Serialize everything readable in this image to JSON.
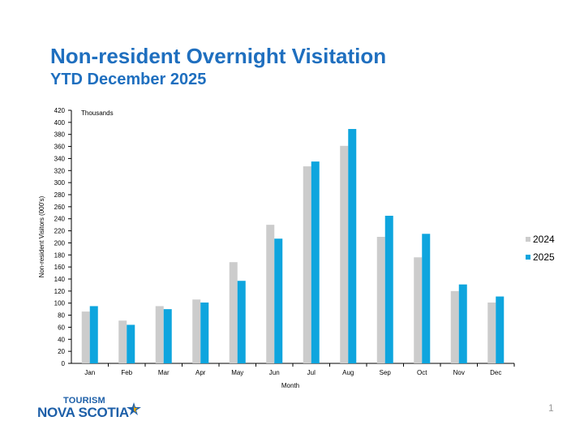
{
  "slide": {
    "title": "Non-resident Overnight Visitation",
    "subtitle": "YTD December 2025",
    "page_number": "1"
  },
  "logo": {
    "line1": "TOURISM",
    "line2": "NOVA SCOTIA"
  },
  "colors": {
    "series_2024": "#cccccc",
    "series_2025": "#0ea5de",
    "title": "#1f6fbf"
  },
  "chart_data": {
    "type": "bar",
    "title": "",
    "xlabel": "Month",
    "ylabel": "Non-resident Visitors (000's)",
    "unit_label": "Thousands",
    "ylim": [
      0,
      420
    ],
    "yticks": [
      0,
      20,
      40,
      60,
      80,
      100,
      120,
      140,
      160,
      180,
      200,
      220,
      240,
      260,
      280,
      300,
      320,
      340,
      360,
      380,
      400,
      420
    ],
    "grid": false,
    "legend_position": "right",
    "categories": [
      "Jan",
      "Feb",
      "Mar",
      "Apr",
      "May",
      "Jun",
      "Jul",
      "Aug",
      "Sep",
      "Oct",
      "Nov",
      "Dec"
    ],
    "series": [
      {
        "name": "2024",
        "values": [
          86,
          71,
          95,
          106,
          168,
          230,
          327,
          361,
          210,
          176,
          120,
          101
        ]
      },
      {
        "name": "2025",
        "values": [
          95,
          64,
          90,
          101,
          137,
          207,
          335,
          389,
          245,
          215,
          131,
          111
        ]
      }
    ]
  }
}
